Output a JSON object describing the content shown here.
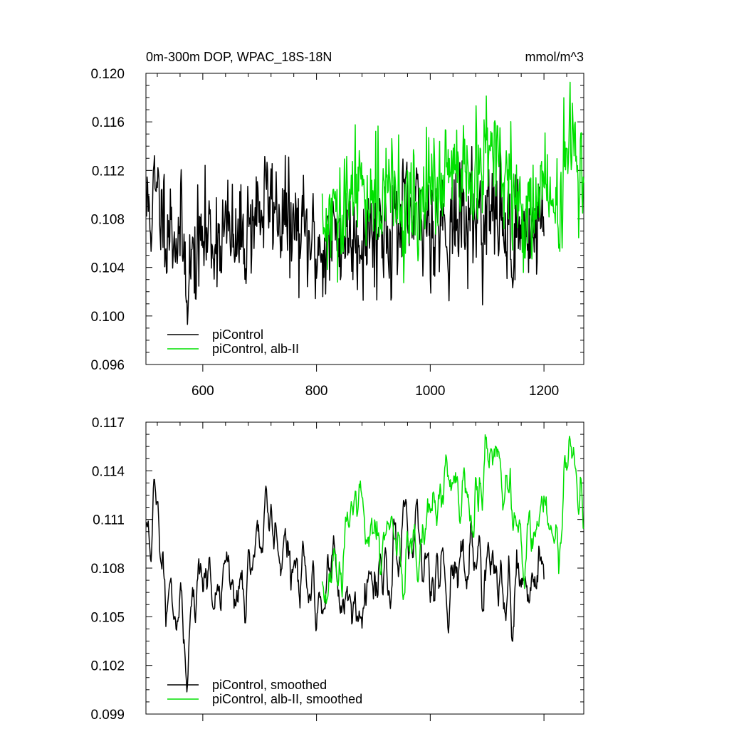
{
  "chart_data": [
    {
      "type": "line",
      "title": "0m-300m DOP, WPAC_18S-18N",
      "units": "mmol/m^3",
      "xlim": [
        500,
        1270
      ],
      "ylim": [
        0.096,
        0.12
      ],
      "xticks": [
        600,
        800,
        1000,
        1200
      ],
      "xtick_labels": [
        "600",
        "800",
        "1000",
        "1200"
      ],
      "yticks": [
        0.096,
        0.1,
        0.104,
        0.108,
        0.112,
        0.116,
        0.12
      ],
      "ytick_labels": [
        "0.096",
        "0.100",
        "0.104",
        "0.108",
        "0.112",
        "0.116",
        "0.120"
      ],
      "legend_position": "bottom-left",
      "series": [
        {
          "name": "piControl",
          "color": "#000000",
          "x_start": 501,
          "x_end": 1200,
          "n": 700,
          "seed": 11,
          "mean_anchors": [
            [
              501,
              0.1088
            ],
            [
              520,
              0.1095
            ],
            [
              560,
              0.1065
            ],
            [
              575,
              0.1035
            ],
            [
              600,
              0.1065
            ],
            [
              640,
              0.107
            ],
            [
              660,
              0.1055
            ],
            [
              690,
              0.1085
            ],
            [
              720,
              0.1095
            ],
            [
              760,
              0.107
            ],
            [
              800,
              0.1055
            ],
            [
              840,
              0.1065
            ],
            [
              880,
              0.107
            ],
            [
              940,
              0.1075
            ],
            [
              1000,
              0.108
            ],
            [
              1040,
              0.1075
            ],
            [
              1080,
              0.1085
            ],
            [
              1120,
              0.108
            ],
            [
              1150,
              0.1065
            ],
            [
              1200,
              0.108
            ]
          ],
          "noise_sd": 0.0022,
          "smooth_window": 1
        },
        {
          "name": "piControl, alb-II",
          "color": "#00e000",
          "x_start": 810,
          "x_end": 1270,
          "n": 460,
          "seed": 29,
          "mean_anchors": [
            [
              810,
              0.107
            ],
            [
              840,
              0.1075
            ],
            [
              860,
              0.1095
            ],
            [
              880,
              0.111
            ],
            [
              920,
              0.11
            ],
            [
              960,
              0.109
            ],
            [
              1000,
              0.1095
            ],
            [
              1020,
              0.112
            ],
            [
              1040,
              0.111
            ],
            [
              1080,
              0.1105
            ],
            [
              1100,
              0.114
            ],
            [
              1130,
              0.112
            ],
            [
              1160,
              0.1075
            ],
            [
              1180,
              0.1095
            ],
            [
              1200,
              0.111
            ],
            [
              1220,
              0.1085
            ],
            [
              1240,
              0.112
            ],
            [
              1255,
              0.115
            ],
            [
              1270,
              0.1105
            ]
          ],
          "noise_sd": 0.0022,
          "smooth_window": 1
        }
      ]
    },
    {
      "type": "line",
      "title": "",
      "units": "",
      "xlim": [
        500,
        1270
      ],
      "ylim": [
        0.099,
        0.117
      ],
      "xticks": [
        600,
        800,
        1000,
        1200
      ],
      "xtick_labels": [],
      "yticks": [
        0.099,
        0.102,
        0.105,
        0.108,
        0.111,
        0.114,
        0.117
      ],
      "ytick_labels": [
        "0.099",
        "0.102",
        "0.105",
        "0.108",
        "0.111",
        "0.114",
        "0.117"
      ],
      "legend_position": "bottom-left",
      "series": [
        {
          "name": "piControl, smoothed",
          "color": "#000000",
          "x_start": 501,
          "x_end": 1200,
          "n": 700,
          "seed": 11,
          "mean_anchors": [
            [
              501,
              0.1095
            ],
            [
              515,
              0.1115
            ],
            [
              530,
              0.1085
            ],
            [
              550,
              0.1065
            ],
            [
              570,
              0.103
            ],
            [
              590,
              0.107
            ],
            [
              640,
              0.1075
            ],
            [
              660,
              0.1055
            ],
            [
              690,
              0.1095
            ],
            [
              720,
              0.111
            ],
            [
              760,
              0.1075
            ],
            [
              800,
              0.106
            ],
            [
              830,
              0.108
            ],
            [
              850,
              0.106
            ],
            [
              870,
              0.1065
            ],
            [
              900,
              0.1075
            ],
            [
              940,
              0.109
            ],
            [
              980,
              0.109
            ],
            [
              1000,
              0.1085
            ],
            [
              1040,
              0.1075
            ],
            [
              1080,
              0.109
            ],
            [
              1130,
              0.1065
            ],
            [
              1160,
              0.107
            ],
            [
              1200,
              0.108
            ]
          ],
          "noise_sd": 0.002,
          "smooth_window": 5
        },
        {
          "name": "piControl, alb-II, smoothed",
          "color": "#00e000",
          "x_start": 810,
          "x_end": 1270,
          "n": 460,
          "seed": 29,
          "mean_anchors": [
            [
              810,
              0.106
            ],
            [
              840,
              0.107
            ],
            [
              860,
              0.111
            ],
            [
              880,
              0.112
            ],
            [
              900,
              0.111
            ],
            [
              920,
              0.1095
            ],
            [
              960,
              0.109
            ],
            [
              1000,
              0.11
            ],
            [
              1020,
              0.114
            ],
            [
              1040,
              0.112
            ],
            [
              1080,
              0.111
            ],
            [
              1100,
              0.115
            ],
            [
              1130,
              0.1135
            ],
            [
              1160,
              0.1085
            ],
            [
              1180,
              0.111
            ],
            [
              1200,
              0.1115
            ],
            [
              1220,
              0.1095
            ],
            [
              1245,
              0.114
            ],
            [
              1260,
              0.115
            ],
            [
              1270,
              0.1105
            ]
          ],
          "noise_sd": 0.002,
          "smooth_window": 5
        }
      ]
    }
  ]
}
